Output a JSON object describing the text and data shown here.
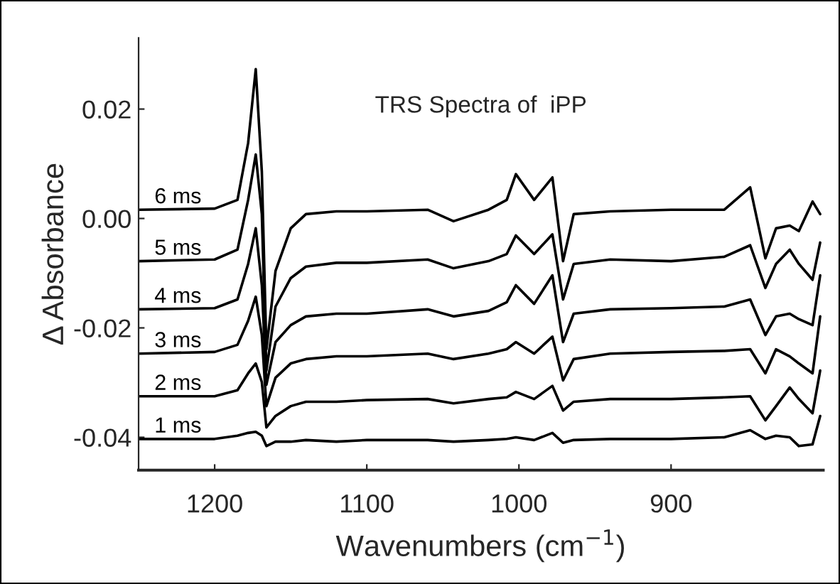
{
  "chart_data": {
    "type": "line",
    "title": "TRS Spectra of  iPP",
    "xlabel": "Wavenumbers (cm$^{−1}$)",
    "ylabel": "Δ Absorbance",
    "x": [
      1250,
      1200,
      1185,
      1178,
      1173,
      1169,
      1166,
      1160,
      1150,
      1140,
      1120,
      1100,
      1060,
      1043,
      1020,
      1008,
      1002,
      990,
      978,
      971,
      964,
      940,
      900,
      865,
      848,
      838,
      831,
      822,
      816,
      807,
      802
    ],
    "series": [
      {
        "name": "6 ms",
        "color": "#000000",
        "values": [
          0.0016,
          0.0018,
          0.0034,
          0.0138,
          0.0273,
          0.0086,
          -0.0239,
          -0.0096,
          -0.0018,
          0.0008,
          0.0013,
          0.0013,
          0.0016,
          -0.0005,
          0.0016,
          0.0034,
          0.0081,
          0.0034,
          0.0075,
          -0.0078,
          0.0008,
          0.0013,
          0.0016,
          0.0016,
          0.0057,
          -0.0073,
          -0.0018,
          -0.0013,
          -0.0023,
          0.0031,
          0.0008
        ]
      },
      {
        "name": "5 ms",
        "color": "#000000",
        "values": [
          -0.0078,
          -0.0075,
          -0.0057,
          0.0034,
          0.0117,
          0.0008,
          -0.0278,
          -0.0161,
          -0.0109,
          -0.0088,
          -0.0081,
          -0.0081,
          -0.0075,
          -0.0091,
          -0.0078,
          -0.0065,
          -0.0031,
          -0.0065,
          -0.0029,
          -0.0148,
          -0.0083,
          -0.0075,
          -0.0078,
          -0.007,
          -0.0049,
          -0.0127,
          -0.0083,
          -0.0057,
          -0.0083,
          -0.0112,
          -0.0044
        ]
      },
      {
        "name": "4 ms",
        "color": "#000000",
        "values": [
          -0.0166,
          -0.0164,
          -0.0148,
          -0.0083,
          -0.0018,
          -0.0122,
          -0.0304,
          -0.0226,
          -0.0195,
          -0.0179,
          -0.0174,
          -0.0174,
          -0.0166,
          -0.0179,
          -0.0169,
          -0.0153,
          -0.0122,
          -0.0156,
          -0.0104,
          -0.0226,
          -0.0174,
          -0.0166,
          -0.0164,
          -0.0161,
          -0.0148,
          -0.0213,
          -0.0179,
          -0.0174,
          -0.0184,
          -0.0195,
          -0.0104
        ]
      },
      {
        "name": "3 ms",
        "color": "#000000",
        "values": [
          -0.0247,
          -0.0244,
          -0.0231,
          -0.0187,
          -0.0143,
          -0.0213,
          -0.0343,
          -0.0291,
          -0.0265,
          -0.0257,
          -0.0252,
          -0.0252,
          -0.0247,
          -0.0257,
          -0.0247,
          -0.0239,
          -0.0226,
          -0.0247,
          -0.0216,
          -0.0296,
          -0.0257,
          -0.0247,
          -0.0244,
          -0.0242,
          -0.0239,
          -0.0283,
          -0.0239,
          -0.0252,
          -0.0265,
          -0.0283,
          -0.0179
        ]
      },
      {
        "name": "2 ms",
        "color": "#000000",
        "values": [
          -0.0325,
          -0.0325,
          -0.0314,
          -0.0283,
          -0.0265,
          -0.0299,
          -0.0382,
          -0.0361,
          -0.0343,
          -0.0335,
          -0.0335,
          -0.0332,
          -0.033,
          -0.0338,
          -0.033,
          -0.0327,
          -0.0317,
          -0.033,
          -0.0306,
          -0.0351,
          -0.0335,
          -0.033,
          -0.033,
          -0.0327,
          -0.0325,
          -0.0369,
          -0.0343,
          -0.0309,
          -0.033,
          -0.0356,
          -0.0278
        ]
      },
      {
        "name": "1 ms",
        "color": "#000000",
        "values": [
          -0.0403,
          -0.0403,
          -0.0397,
          -0.0392,
          -0.039,
          -0.0397,
          -0.0416,
          -0.0408,
          -0.0408,
          -0.0405,
          -0.0408,
          -0.0405,
          -0.0405,
          -0.0408,
          -0.0405,
          -0.0403,
          -0.04,
          -0.0405,
          -0.0392,
          -0.041,
          -0.0405,
          -0.0403,
          -0.0403,
          -0.04,
          -0.0387,
          -0.0403,
          -0.0397,
          -0.04,
          -0.0416,
          -0.0413,
          -0.0361
        ]
      }
    ],
    "xlim": [
      1250,
      800
    ],
    "xticks": [
      1200,
      1100,
      1000,
      900
    ],
    "ylim": [
      -0.046,
      0.033
    ],
    "yticks": [
      {
        "value": 0.02,
        "label": "0.02"
      },
      {
        "value": 0.0,
        "label": "0.00"
      },
      {
        "value": -0.02,
        "label": "-0.02"
      },
      {
        "value": -0.04,
        "label": "-0.04"
      }
    ],
    "grid": false,
    "legend": false
  }
}
